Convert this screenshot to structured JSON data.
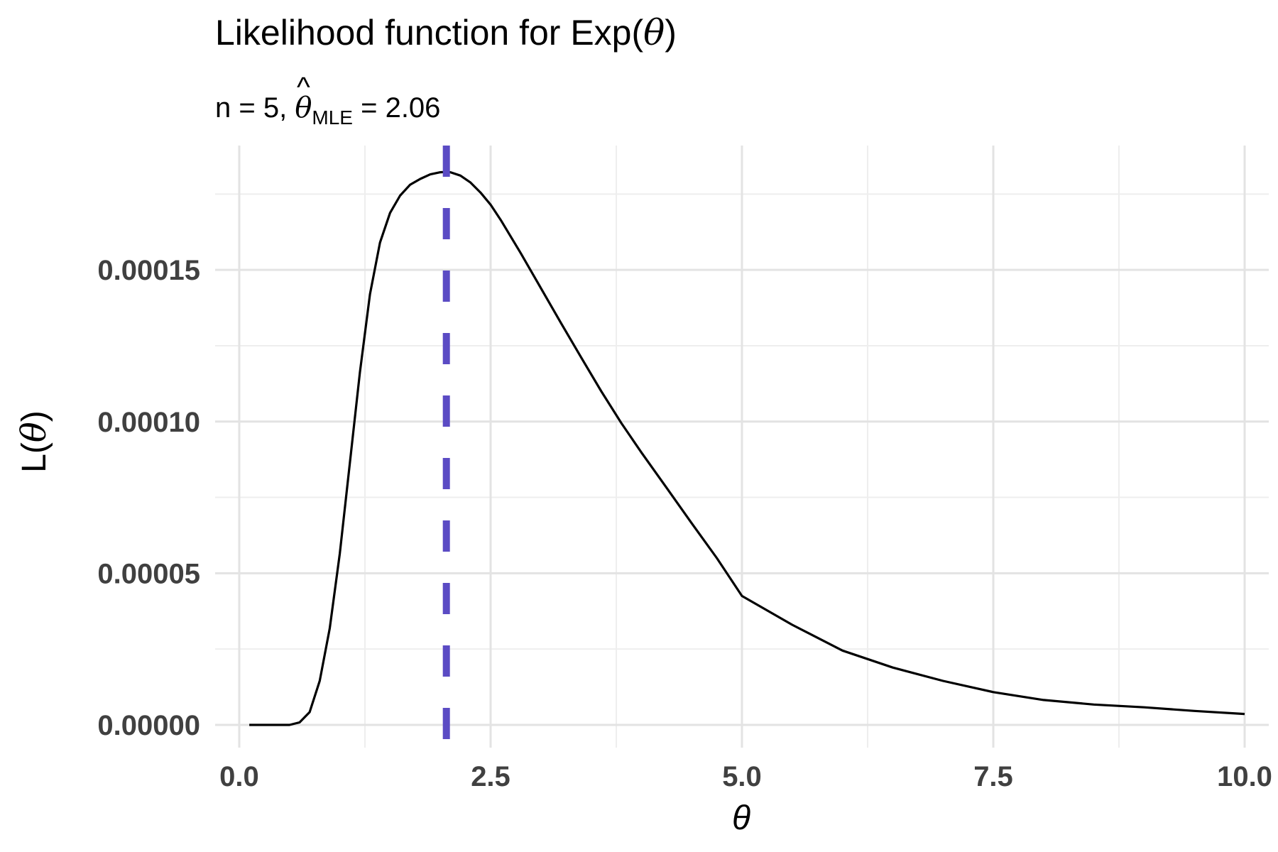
{
  "chart_data": {
    "type": "line",
    "title_text": "Likelihood function for Exp(",
    "title_symbol": "θ",
    "title_close": ")",
    "subtitle": {
      "prefix": "n = 5, ",
      "symbol": "θ",
      "hat": "^",
      "subscript": "MLE",
      "suffix": " = 2.06"
    },
    "xlabel": "θ",
    "ylabel_prefix": "L(",
    "ylabel_symbol": "θ",
    "ylabel_suffix": ")",
    "n": 5,
    "theta_mle": 2.06,
    "xlim": [
      -0.24,
      10.24
    ],
    "ylim": [
      -7.5e-06,
      0.000191
    ],
    "x_ticks": [
      0.0,
      2.5,
      5.0,
      7.5,
      10.0
    ],
    "x_tick_labels": [
      "0.0",
      "2.5",
      "5.0",
      "7.5",
      "10.0"
    ],
    "y_ticks": [
      0.0,
      5e-05,
      0.0001,
      0.00015
    ],
    "y_tick_labels": [
      "0.00000",
      "0.00005",
      "0.00010",
      "0.00015"
    ],
    "grid": true,
    "series": [
      {
        "color": "#000000",
        "x": [
          0.1,
          0.5,
          0.6,
          0.7,
          0.8,
          0.9,
          1.0,
          1.1,
          1.2,
          1.3,
          1.4,
          1.5,
          1.6,
          1.7,
          1.8,
          1.9,
          2.0,
          2.06,
          2.1,
          2.2,
          2.3,
          2.4,
          2.5,
          2.6,
          2.8,
          3.0,
          3.2,
          3.4,
          3.6,
          3.8,
          4.0,
          4.25,
          4.5,
          4.75,
          5.0,
          5.5,
          6.0,
          6.5,
          7.0,
          7.5,
          8.0,
          8.5,
          9.0,
          9.5,
          10.0
        ],
        "y": [
          0.0,
          0.0,
          8e-07,
          4.2e-06,
          1.45e-05,
          3.18e-05,
          5.65e-05,
          8.62e-05,
          0.0001162,
          0.000142,
          0.000159,
          0.0001688,
          0.0001745,
          0.0001781,
          0.00018,
          0.0001815,
          0.0001822,
          0.0001823,
          0.0001822,
          0.0001811,
          0.0001788,
          0.0001755,
          0.0001715,
          0.0001665,
          0.0001555,
          0.000144,
          0.0001325,
          0.0001212,
          0.00011,
          9.95e-05,
          8.98e-05,
          7.82e-05,
          6.65e-05,
          5.5e-05,
          4.25e-05,
          3.3e-05,
          2.45e-05,
          1.89e-05,
          1.45e-05,
          1.08e-05,
          8.2e-06,
          6.7e-06,
          5.8e-06,
          4.6e-06,
          3.6e-06
        ]
      }
    ],
    "reference_line": {
      "x": 2.06,
      "color": "#5b4bc4",
      "style": "dashed"
    }
  }
}
